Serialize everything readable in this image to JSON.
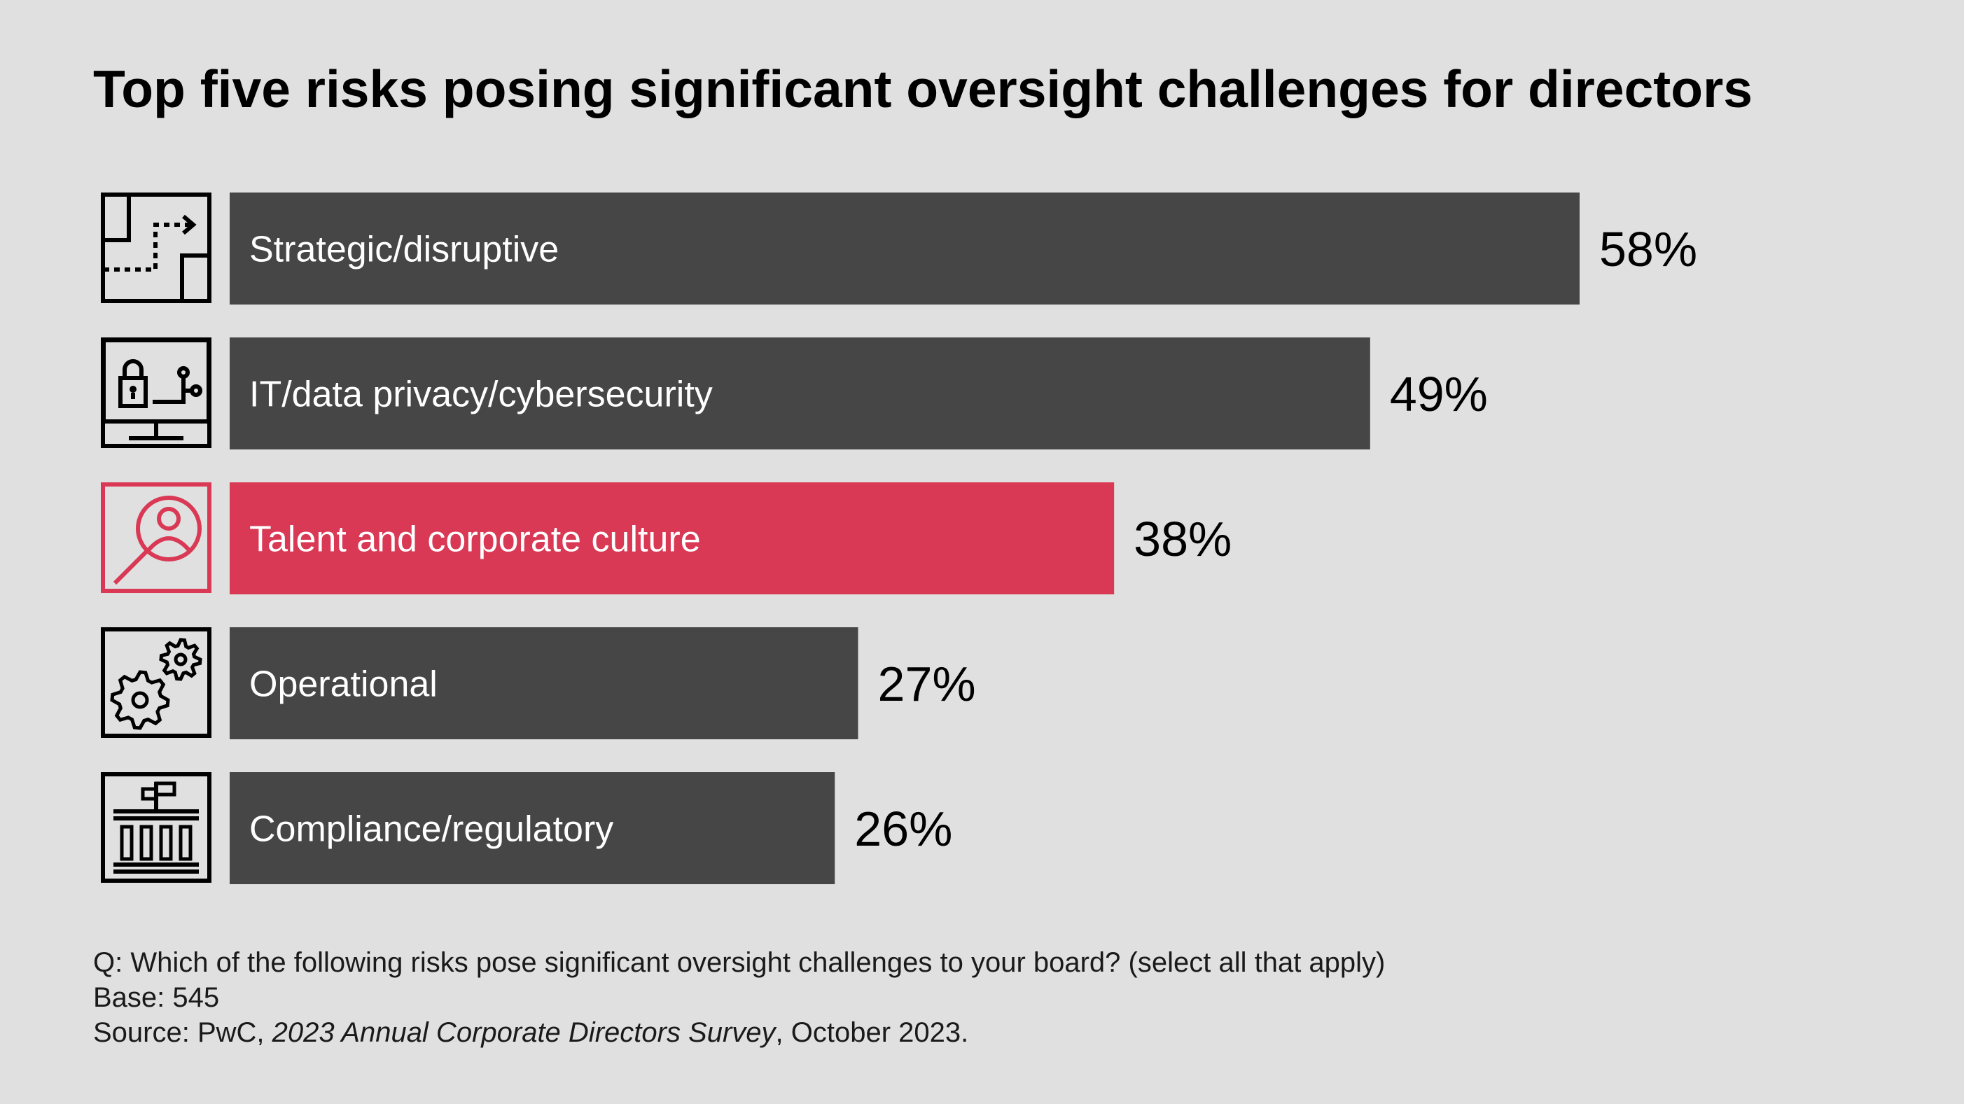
{
  "title": "Top five risks posing significant oversight challenges for directors",
  "chart_data": {
    "type": "bar",
    "orientation": "horizontal",
    "categories": [
      "Strategic/disruptive",
      "IT/data privacy/cybersecurity",
      "Talent and corporate culture",
      "Operational",
      "Compliance/regulatory"
    ],
    "values": [
      58,
      49,
      38,
      27,
      26
    ],
    "value_labels": [
      "58%",
      "49%",
      "38%",
      "27%",
      "26%"
    ],
    "icons": [
      "map-path-icon",
      "monitor-lock-icon",
      "magnifier-person-icon",
      "gears-icon",
      "government-building-icon"
    ],
    "highlight_index": 2,
    "xlim": [
      0,
      100
    ],
    "grid": false,
    "legend": "none"
  },
  "colors": {
    "bar": "#464646",
    "highlight": "#d93954",
    "background": "#e0e0e0",
    "icon": "#000000"
  },
  "footnote": {
    "question": "Q: Which of the following risks pose significant oversight challenges to your board? (select all that apply)",
    "base": "Base: 545",
    "source_prefix": "Source: PwC, ",
    "source_italic": "2023 Annual Corporate Directors Survey",
    "source_suffix": ", October 2023."
  }
}
